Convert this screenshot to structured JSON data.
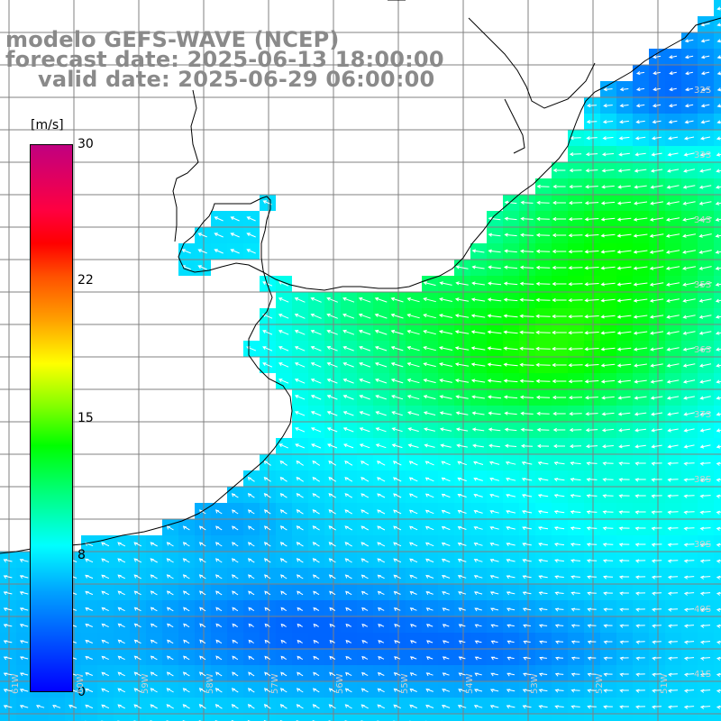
{
  "map": {
    "title_line1": "modelo GEFS-WAVE (NCEP)",
    "title_line2": "forecast date: 2025-06-13 18:00:00",
    "title_line3": "valid date: 2025-06-29 06:00:00",
    "variable": "wind speed and direction",
    "colorbar": {
      "unit": "[m/s]",
      "labels": [
        "30",
        "22",
        "15",
        "8",
        "0"
      ],
      "min": 0,
      "max": 30,
      "colors": [
        "#0000ff",
        "#00a0ff",
        "#00ffff",
        "#00ff00",
        "#ffff00",
        "#ff0000",
        "#c00080"
      ]
    },
    "lat_labels": [
      "32S",
      "33S",
      "34S",
      "35S",
      "36S",
      "37S",
      "38S",
      "39S",
      "40S",
      "41S"
    ],
    "lon_labels": [
      "61W",
      "60W",
      "59W",
      "58W",
      "57W",
      "56W",
      "55W",
      "54W",
      "53W",
      "52W",
      "51W"
    ],
    "coast_color": "#000000",
    "grid_color": "#808080",
    "arrow_color": "#ffffff"
  }
}
